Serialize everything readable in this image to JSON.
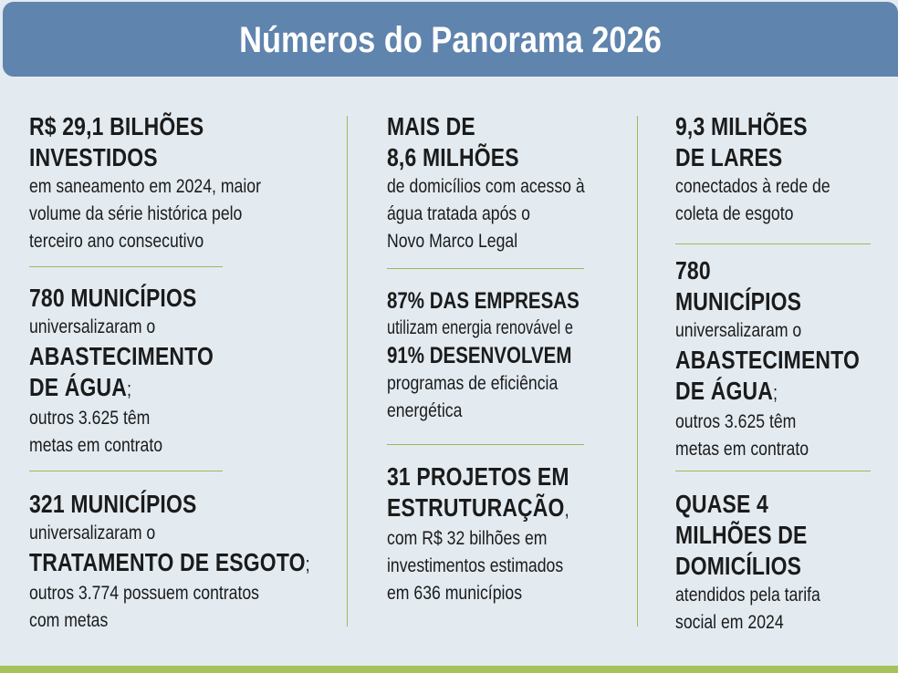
{
  "title": "Números do Panorama 2026",
  "colors": {
    "header_bg": "#5f84ad",
    "panel_bg": "#e3ebf1",
    "divider": "#9cb95a",
    "bottom_bar": "#a6c35a"
  },
  "col1": {
    "b1": {
      "h1": "R$ 29,1 BILHÕES",
      "h2": "INVESTIDOS",
      "t1": "em saneamento em 2024, maior",
      "t2": "volume da série histórica pelo",
      "t3": "terceiro ano consecutivo"
    },
    "b2": {
      "h1": "780 MUNICÍPIOS",
      "t1": "universalizaram o",
      "h2": "ABASTECIMENTO",
      "h3": "DE ÁGUA",
      "h3_suffix": ";",
      "t2": "outros 3.625 têm",
      "t3": "metas em contrato"
    },
    "b3": {
      "h1": "321 MUNICÍPIOS",
      "t1": "universalizaram o",
      "h2": "TRATAMENTO DE ESGOTO",
      "h2_suffix": ";",
      "t2": "outros 3.774 possuem contratos",
      "t3": "com metas"
    }
  },
  "col2": {
    "b1": {
      "h1": "MAIS DE",
      "h2": "8,6 MILHÕES",
      "t1": "de domicílios com acesso à",
      "t2": "água tratada após o",
      "t3": "Novo Marco Legal"
    },
    "b2": {
      "h1": "87% DAS EMPRESAS",
      "t1": "utilizam energia renovável e",
      "h2": "91% DESENVOLVEM",
      "t2": "programas de eficiência",
      "t3": "energética"
    },
    "b3": {
      "h1": "31 PROJETOS EM",
      "h2": "ESTRUTURAÇÃO",
      "h2_suffix": ",",
      "t1": "com R$ 32 bilhões em",
      "t2": "investimentos estimados",
      "t3": "em 636 municípios"
    }
  },
  "col3": {
    "b1": {
      "h1": "9,3 MILHÕES",
      "h2": "DE LARES",
      "t1": "conectados à rede de",
      "t2": "coleta de esgoto"
    },
    "b2": {
      "h1": "780",
      "h2": "MUNICÍPIOS",
      "t1": "universalizaram o",
      "h3": "ABASTECIMENTO",
      "h4": "DE ÁGUA",
      "h4_suffix": ";",
      "t2": "outros 3.625 têm",
      "t3": "metas em contrato"
    },
    "b3": {
      "h1": "QUASE 4",
      "h2": "MILHÕES DE",
      "h3": "DOMICÍLIOS",
      "t1": "atendidos pela tarifa",
      "t2": "social em 2024"
    }
  }
}
